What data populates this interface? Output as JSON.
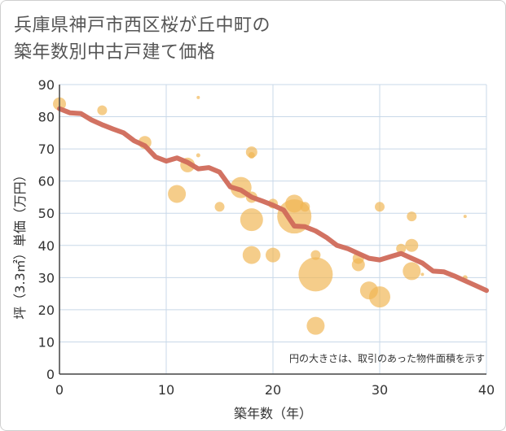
{
  "chart_data": {
    "type": "scatter",
    "title_lines": [
      "兵庫県神戸市西区桜が丘中町の",
      "築年数別中古戸建て価格"
    ],
    "xlabel": "築年数（年）",
    "ylabel": "坪（3.3㎡）単価（万円）",
    "xlim": [
      0,
      40
    ],
    "ylim": [
      0,
      90
    ],
    "x_ticks": [
      0,
      10,
      20,
      30,
      40
    ],
    "y_ticks": [
      0,
      10,
      20,
      30,
      40,
      50,
      60,
      70,
      80,
      90
    ],
    "grid": true,
    "note": "円の大きさは、取引のあった物件面積を示す",
    "colors": {
      "bubble": "#f0b552",
      "line": "#d06a5a",
      "grid": "#c8d8e8",
      "axis": "#444444"
    },
    "bubbles": [
      {
        "x": 0,
        "y": 84,
        "s": 8
      },
      {
        "x": 4,
        "y": 82,
        "s": 6
      },
      {
        "x": 8,
        "y": 72,
        "s": 8
      },
      {
        "x": 11,
        "y": 56,
        "s": 11
      },
      {
        "x": 12,
        "y": 65,
        "s": 9
      },
      {
        "x": 13,
        "y": 86,
        "s": 2
      },
      {
        "x": 13,
        "y": 68,
        "s": 2.5
      },
      {
        "x": 15,
        "y": 52,
        "s": 6
      },
      {
        "x": 17,
        "y": 58,
        "s": 13
      },
      {
        "x": 18,
        "y": 69,
        "s": 7
      },
      {
        "x": 18,
        "y": 68,
        "s": 4
      },
      {
        "x": 18,
        "y": 55,
        "s": 7
      },
      {
        "x": 18,
        "y": 48,
        "s": 14
      },
      {
        "x": 18,
        "y": 37,
        "s": 11
      },
      {
        "x": 20,
        "y": 53,
        "s": 6
      },
      {
        "x": 20,
        "y": 37,
        "s": 9
      },
      {
        "x": 22,
        "y": 49,
        "s": 21
      },
      {
        "x": 22,
        "y": 53,
        "s": 11
      },
      {
        "x": 23,
        "y": 52,
        "s": 6
      },
      {
        "x": 24,
        "y": 37,
        "s": 6
      },
      {
        "x": 24,
        "y": 31,
        "s": 21
      },
      {
        "x": 24,
        "y": 15,
        "s": 11
      },
      {
        "x": 28,
        "y": 36,
        "s": 7
      },
      {
        "x": 28,
        "y": 34,
        "s": 8
      },
      {
        "x": 29,
        "y": 26,
        "s": 11
      },
      {
        "x": 30,
        "y": 24,
        "s": 13
      },
      {
        "x": 30,
        "y": 52,
        "s": 6
      },
      {
        "x": 32,
        "y": 39,
        "s": 6
      },
      {
        "x": 33,
        "y": 49,
        "s": 6
      },
      {
        "x": 33,
        "y": 40,
        "s": 8
      },
      {
        "x": 33,
        "y": 32,
        "s": 11
      },
      {
        "x": 34,
        "y": 31,
        "s": 2
      },
      {
        "x": 38,
        "y": 49,
        "s": 2
      },
      {
        "x": 38,
        "y": 30,
        "s": 3
      }
    ],
    "trend": {
      "x": [
        0,
        1,
        2,
        3,
        4,
        5,
        6,
        7,
        8,
        9,
        10,
        11,
        12,
        13,
        14,
        15,
        16,
        17,
        18,
        19,
        20,
        21,
        22,
        23,
        24,
        25,
        26,
        27,
        28,
        29,
        30,
        31,
        32,
        33,
        34,
        35,
        36,
        37,
        38,
        39,
        40
      ],
      "y": [
        82.5,
        81.2,
        81.0,
        79.0,
        77.5,
        76.2,
        75.0,
        72.5,
        71.0,
        67.5,
        66.2,
        67.2,
        65.8,
        63.8,
        64.2,
        62.8,
        58.2,
        57.2,
        55.0,
        53.8,
        52.5,
        51.0,
        46.0,
        45.8,
        44.5,
        42.5,
        40.0,
        39.0,
        37.5,
        36.0,
        35.5,
        36.5,
        37.5,
        36.0,
        34.5,
        32.0,
        31.8,
        30.5,
        29.0,
        27.5,
        26.0
      ]
    }
  }
}
